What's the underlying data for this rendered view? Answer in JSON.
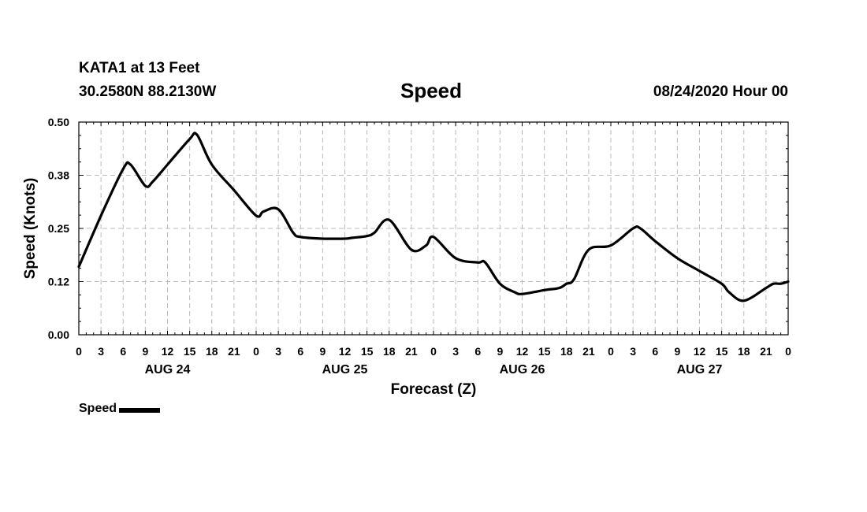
{
  "header": {
    "station": "KATA1 at 13 Feet",
    "coords": "30.2580N 88.2130W",
    "title": "Speed",
    "run": "08/24/2020 Hour 00"
  },
  "legend": {
    "label": "Speed",
    "color": "#000000"
  },
  "chart_data": {
    "type": "line",
    "title": "Speed",
    "xlabel": "Forecast (Z)",
    "ylabel": "Speed (Knots)",
    "ylim": [
      0,
      0.5
    ],
    "yticks": [
      "0.00",
      "0.12",
      "0.25",
      "0.38",
      "0.50"
    ],
    "xlim_hours": [
      0,
      96
    ],
    "xtick_labels": [
      "0",
      "3",
      "6",
      "9",
      "12",
      "15",
      "18",
      "21",
      "0",
      "3",
      "6",
      "9",
      "12",
      "15",
      "18",
      "21",
      "0",
      "3",
      "6",
      "9",
      "12",
      "15",
      "18",
      "21",
      "0",
      "3",
      "6",
      "9",
      "12",
      "15",
      "18",
      "21",
      "0"
    ],
    "day_labels": [
      "AUG 24",
      "AUG 25",
      "AUG 26",
      "AUG 27"
    ],
    "grid": true,
    "series": [
      {
        "name": "Speed",
        "color": "#000000",
        "x": [
          0,
          3,
          6,
          7,
          9,
          10,
          12,
          15,
          16,
          18,
          21,
          24,
          25,
          27,
          29,
          30,
          33,
          36,
          37,
          39,
          40,
          42,
          45,
          47,
          48,
          51,
          54,
          55,
          57,
          59,
          60,
          63,
          65,
          66,
          67,
          69,
          72,
          75,
          76,
          78,
          81,
          84,
          87,
          88,
          90,
          93,
          94,
          95,
          96
        ],
        "y": [
          0.16,
          0.28,
          0.39,
          0.4,
          0.35,
          0.36,
          0.4,
          0.46,
          0.47,
          0.4,
          0.34,
          0.28,
          0.29,
          0.295,
          0.24,
          0.23,
          0.226,
          0.226,
          0.228,
          0.232,
          0.24,
          0.27,
          0.2,
          0.21,
          0.23,
          0.18,
          0.17,
          0.17,
          0.12,
          0.1,
          0.096,
          0.105,
          0.11,
          0.12,
          0.13,
          0.2,
          0.21,
          0.25,
          0.25,
          0.22,
          0.18,
          0.15,
          0.12,
          0.1,
          0.08,
          0.11,
          0.12,
          0.12,
          0.125
        ]
      }
    ]
  }
}
